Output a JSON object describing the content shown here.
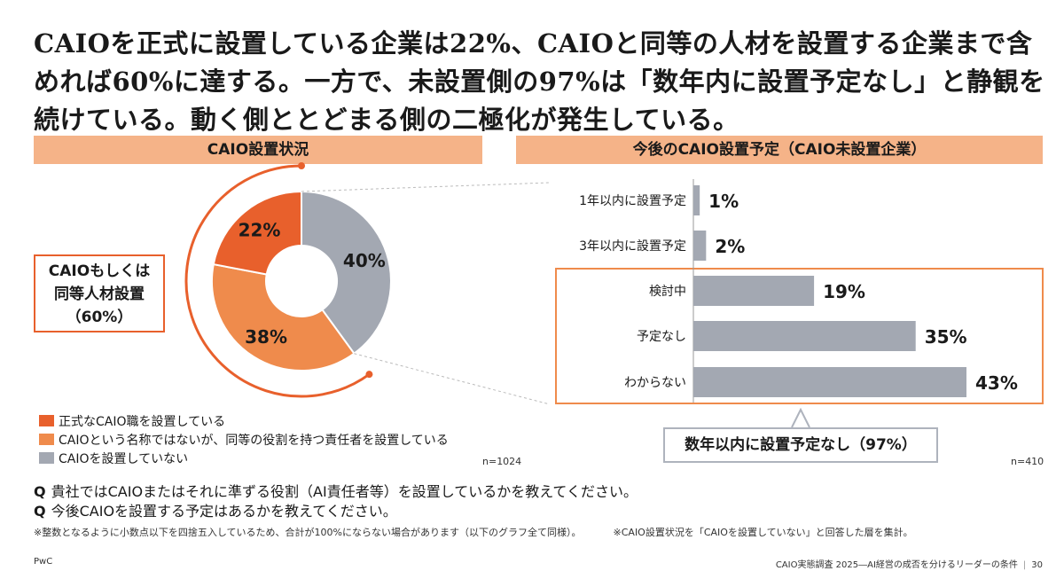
{
  "headline": "CAIOを正式に設置している企業は22%、CAIOと同等の人材を設置する企業まで含めれば60%に達する。一方で、未設置側の97%は「数年内に設置予定なし」と静観を続けている。動く側ととどまる側の二極化が発生している。",
  "left_section_title": "CAIO設置状況",
  "right_section_title": "今後のCAIO設置予定（CAIO未設置企業）",
  "callout": {
    "line1": "CAIOもしくは",
    "line2": "同等人材設置",
    "line3": "（60%）"
  },
  "summary_box": "数年以内に設置予定なし（97%）",
  "left_n": "n=1024",
  "right_n": "n=410",
  "questions": [
    {
      "q": "Q",
      "text": "貴社ではCAIOまたはそれに準ずる役割（AI責任者等）を設置しているかを教えてください。"
    },
    {
      "q": "Q",
      "text": "今後CAIOを設置する予定はあるかを教えてください。"
    }
  ],
  "notes": [
    "※整数となるように小数点以下を四捨五入しているため、合計が100%にならない場合があります（以下のグラフ全て同様）。",
    "※CAIO設置状況を「CAIOを設置していない」と回答した層を集計。"
  ],
  "footer": {
    "left": "PwC",
    "right": "CAIO実態調査 2025―AI経営の成否を分けるリーダーの条件",
    "page": "30"
  },
  "colors": {
    "accent": "#e8602c",
    "light_orange": "#ef8b4c",
    "gray": "#a3a8b2",
    "section_bg": "#f5b388"
  },
  "chart_data": [
    {
      "type": "pie",
      "title": "CAIO設置状況",
      "labels": [
        "正式なCAIO職を設置している",
        "CAIOという名称ではないが、同等の役割を持つ責任者を設置している",
        "CAIOを設置していない"
      ],
      "values": [
        22,
        38,
        40
      ],
      "value_labels": [
        "22%",
        "38%",
        "40%"
      ],
      "colors": [
        "#e8602c",
        "#ef8b4c",
        "#a3a8b2"
      ],
      "donut": true,
      "n": "n=1024"
    },
    {
      "type": "bar",
      "orientation": "horizontal",
      "title": "今後のCAIO設置予定（CAIO未設置企業）",
      "categories": [
        "1年以内に設置予定",
        "3年以内に設置予定",
        "検討中",
        "予定なし",
        "わからない"
      ],
      "values": [
        1,
        2,
        19,
        35,
        43
      ],
      "value_labels": [
        "1%",
        "2%",
        "19%",
        "35%",
        "43%"
      ],
      "color": "#a3a8b2",
      "xlim": [
        0,
        43
      ],
      "highlighted_categories": [
        "検討中",
        "予定なし",
        "わからない"
      ],
      "n": "n=410"
    }
  ]
}
